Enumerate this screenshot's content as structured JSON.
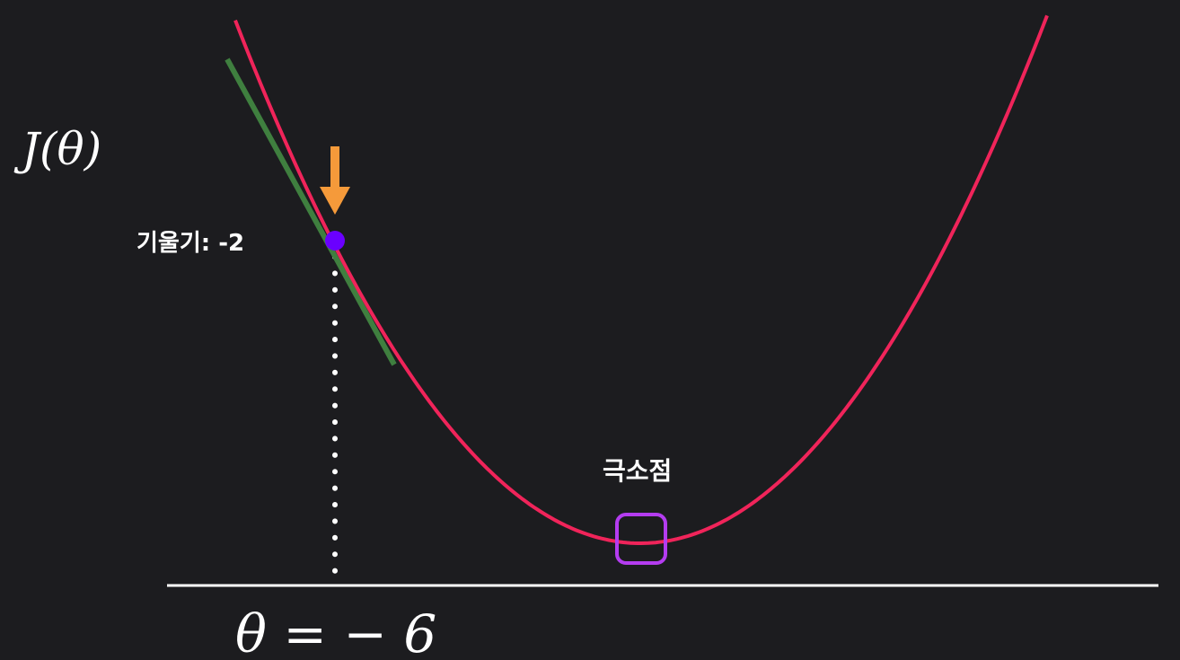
{
  "labels": {
    "y_axis": "J(θ)",
    "theta_value": "θ = − 6",
    "slope": "기울기: -2",
    "minimum": "극소점"
  },
  "colors": {
    "background": "#1c1c1f",
    "curve": "#f0245a",
    "tangent": "#3f7f3f",
    "point": "#6a00ff",
    "arrow": "#f59a3a",
    "minimum_box": "#b43cf0",
    "axis": "#ffffff",
    "dotted_guide": "#ffffff"
  }
}
